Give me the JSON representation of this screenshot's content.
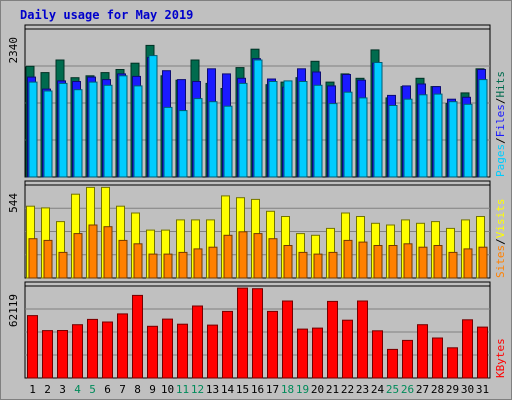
{
  "chart_data": {
    "type": "bar",
    "title": "Daily usage for May 2019",
    "categories": [
      "1",
      "2",
      "3",
      "4",
      "5",
      "6",
      "7",
      "8",
      "9",
      "10",
      "11",
      "12",
      "13",
      "14",
      "15",
      "16",
      "17",
      "18",
      "19",
      "20",
      "21",
      "22",
      "23",
      "24",
      "25",
      "26",
      "27",
      "28",
      "29",
      "30",
      "31"
    ],
    "weekend_days": [
      "4",
      "5",
      "11",
      "12",
      "18",
      "19",
      "25",
      "26"
    ],
    "panels": [
      {
        "ymax_label": "2340",
        "ylim": [
          0,
          2340
        ],
        "series": [
          {
            "name": "Hits",
            "color": "#006b4e",
            "values": [
              1750,
              1650,
              1850,
              1570,
              1600,
              1650,
              1700,
              1800,
              2080,
              1600,
              1530,
              1850,
              1480,
              1400,
              1730,
              2020,
              1460,
              1500,
              1570,
              1830,
              1500,
              1630,
              1560,
              2010,
              1250,
              1430,
              1560,
              1430,
              1160,
              1330,
              1710
            ]
          },
          {
            "name": "Files",
            "color": "#1a1aff",
            "values": [
              1580,
              1390,
              1520,
              1510,
              1580,
              1540,
              1630,
              1590,
              1890,
              1680,
              1540,
              1510,
              1710,
              1630,
              1560,
              1870,
              1550,
              1420,
              1710,
              1660,
              1440,
              1620,
              1530,
              1800,
              1290,
              1440,
              1470,
              1430,
              1230,
              1260,
              1700
            ]
          },
          {
            "name": "Pages",
            "color": "#00ccff",
            "values": [
              1500,
              1360,
              1480,
              1380,
              1500,
              1450,
              1600,
              1440,
              1920,
              1100,
              1050,
              1240,
              1190,
              1120,
              1480,
              1850,
              1510,
              1520,
              1510,
              1450,
              1160,
              1340,
              1250,
              1810,
              1130,
              1230,
              1300,
              1310,
              1190,
              1150,
              1540
            ]
          }
        ]
      },
      {
        "ymax_label": "544",
        "ylim": [
          0,
          544
        ],
        "series": [
          {
            "name": "Visits",
            "color": "#ffff00",
            "values": [
              420,
              410,
              330,
              490,
              530,
              530,
              420,
              380,
              280,
              280,
              340,
              340,
              340,
              480,
              470,
              460,
              390,
              360,
              260,
              250,
              290,
              380,
              360,
              320,
              310,
              340,
              320,
              330,
              290,
              340,
              360
            ]
          },
          {
            "name": "Sites",
            "color": "#ff8000",
            "values": [
              230,
              220,
              150,
              260,
              310,
              300,
              220,
              200,
              140,
              140,
              150,
              170,
              180,
              250,
              270,
              260,
              230,
              190,
              150,
              140,
              150,
              220,
              210,
              190,
              190,
              200,
              180,
              190,
              150,
              170,
              180
            ]
          }
        ]
      },
      {
        "ymax_label": "62119",
        "ylim": [
          0,
          62119
        ],
        "series": [
          {
            "name": "KBytes",
            "color": "#ff0000",
            "values": [
              42100,
              32000,
              32100,
              36000,
              39600,
              37800,
              43300,
              55800,
              34900,
              39800,
              36300,
              48600,
              35700,
              45000,
              60700,
              60300,
              45000,
              52000,
              33000,
              33700,
              51700,
              39000,
              52000,
              31900,
              19300,
              25400,
              36000,
              27000,
              20400,
              39300,
              34400
            ]
          }
        ]
      }
    ],
    "x_colors": {
      "weekday": "#000000",
      "weekend": "#008b5a"
    },
    "grid": true
  }
}
